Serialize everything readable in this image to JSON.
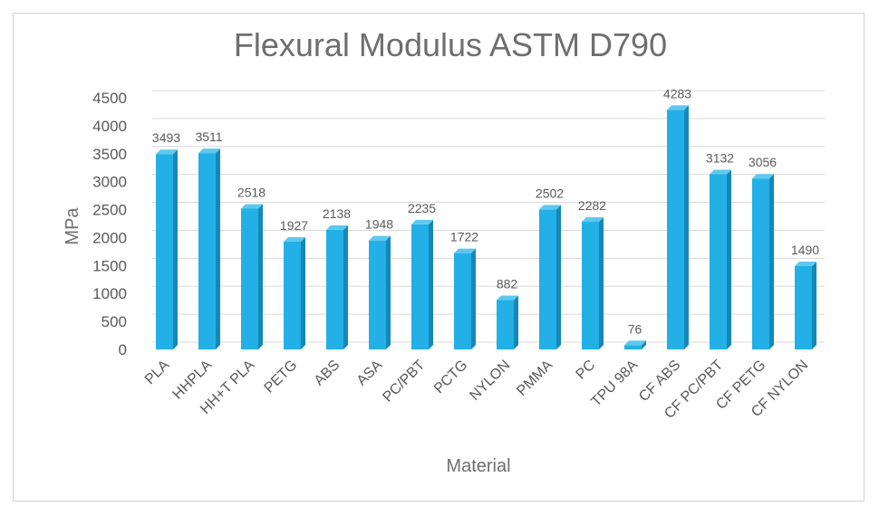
{
  "chart_data": {
    "type": "bar",
    "title": "Flexural Modulus ASTM D790",
    "xlabel": "Material",
    "ylabel": "MPa",
    "ylim": [
      0,
      4500
    ],
    "yticks": [
      0,
      500,
      1000,
      1500,
      2000,
      2500,
      3000,
      3500,
      4000,
      4500
    ],
    "grid": true,
    "legend": "none",
    "data_labels": true,
    "categories": [
      "PLA",
      "HHPLA",
      "HH+T PLA",
      "PETG",
      "ABS",
      "ASA",
      "PC/PBT",
      "PCTG",
      "NYLON",
      "PMMA",
      "PC",
      "TPU 98A",
      "CF ABS",
      "CF PC/PBT",
      "CF PETG",
      "CF NYLON"
    ],
    "values": [
      3493,
      3511,
      2518,
      1927,
      2138,
      1948,
      2235,
      1722,
      882,
      2502,
      2282,
      76,
      4283,
      3132,
      3056,
      1490
    ],
    "bar_color": "#22b0e6",
    "bar_side_color": "#1588b8",
    "bar_top_color": "#5fc8ef"
  }
}
